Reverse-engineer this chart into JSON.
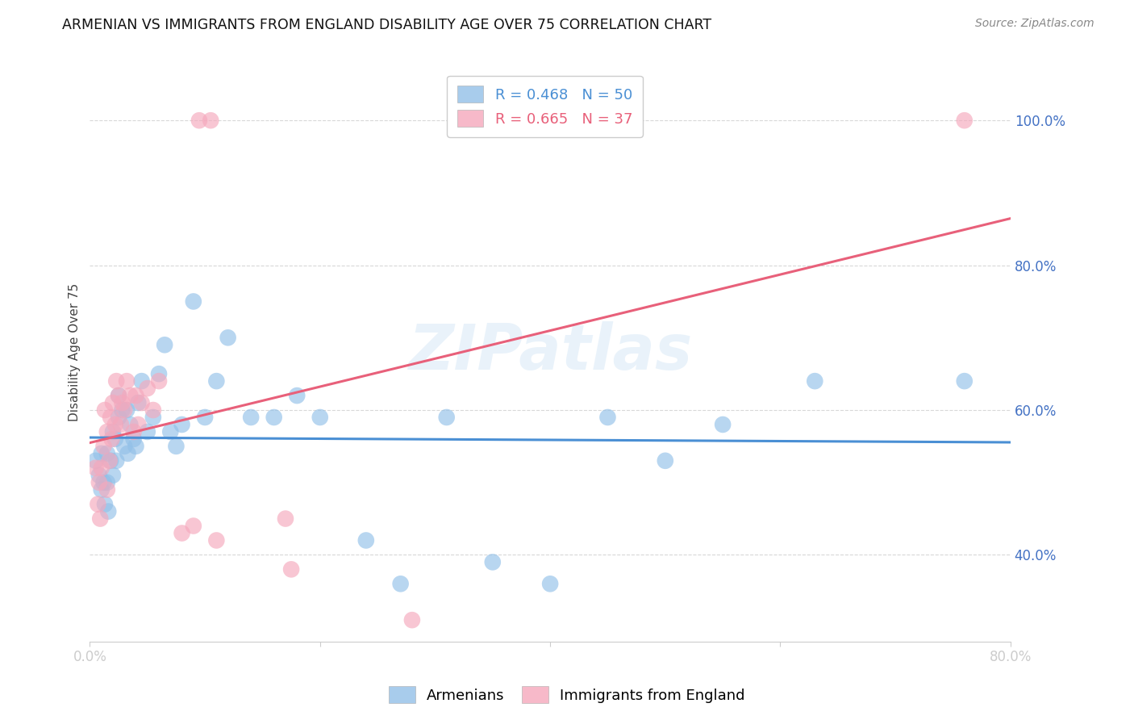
{
  "title": "ARMENIAN VS IMMIGRANTS FROM ENGLAND DISABILITY AGE OVER 75 CORRELATION CHART",
  "source": "Source: ZipAtlas.com",
  "ylabel": "Disability Age Over 75",
  "xlim": [
    0.0,
    0.8
  ],
  "ylim": [
    0.28,
    1.08
  ],
  "blue_color": "#92c0e8",
  "pink_color": "#f5a8bc",
  "blue_line_color": "#4a8fd4",
  "pink_line_color": "#e8607a",
  "watermark": "ZIPatlas",
  "legend_bottom1": "Armenians",
  "legend_bottom2": "Immigrants from England",
  "armenians_x": [
    0.005,
    0.008,
    0.01,
    0.01,
    0.012,
    0.013,
    0.015,
    0.015,
    0.016,
    0.018,
    0.02,
    0.02,
    0.022,
    0.023,
    0.025,
    0.025,
    0.028,
    0.03,
    0.032,
    0.033,
    0.035,
    0.038,
    0.04,
    0.042,
    0.045,
    0.05,
    0.055,
    0.06,
    0.065,
    0.07,
    0.075,
    0.08,
    0.09,
    0.1,
    0.11,
    0.12,
    0.14,
    0.16,
    0.18,
    0.2,
    0.24,
    0.27,
    0.31,
    0.35,
    0.4,
    0.45,
    0.5,
    0.55,
    0.63,
    0.76
  ],
  "armenians_y": [
    0.53,
    0.51,
    0.49,
    0.54,
    0.5,
    0.47,
    0.54,
    0.5,
    0.46,
    0.53,
    0.51,
    0.57,
    0.56,
    0.53,
    0.62,
    0.59,
    0.6,
    0.55,
    0.6,
    0.54,
    0.58,
    0.56,
    0.55,
    0.61,
    0.64,
    0.57,
    0.59,
    0.65,
    0.69,
    0.57,
    0.55,
    0.58,
    0.75,
    0.59,
    0.64,
    0.7,
    0.59,
    0.59,
    0.62,
    0.59,
    0.42,
    0.36,
    0.59,
    0.39,
    0.36,
    0.59,
    0.53,
    0.58,
    0.64,
    0.64
  ],
  "england_x": [
    0.005,
    0.007,
    0.008,
    0.009,
    0.01,
    0.012,
    0.013,
    0.015,
    0.015,
    0.017,
    0.018,
    0.019,
    0.02,
    0.022,
    0.023,
    0.025,
    0.027,
    0.028,
    0.03,
    0.032,
    0.035,
    0.038,
    0.04,
    0.042,
    0.045,
    0.05,
    0.055,
    0.06,
    0.08,
    0.09,
    0.095,
    0.105,
    0.11,
    0.17,
    0.175,
    0.28,
    0.76
  ],
  "england_y": [
    0.52,
    0.47,
    0.5,
    0.45,
    0.52,
    0.55,
    0.6,
    0.49,
    0.57,
    0.53,
    0.59,
    0.56,
    0.61,
    0.58,
    0.64,
    0.62,
    0.58,
    0.61,
    0.6,
    0.64,
    0.62,
    0.57,
    0.62,
    0.58,
    0.61,
    0.63,
    0.6,
    0.64,
    0.43,
    0.44,
    1.0,
    1.0,
    0.42,
    0.45,
    0.38,
    0.31,
    1.0
  ]
}
